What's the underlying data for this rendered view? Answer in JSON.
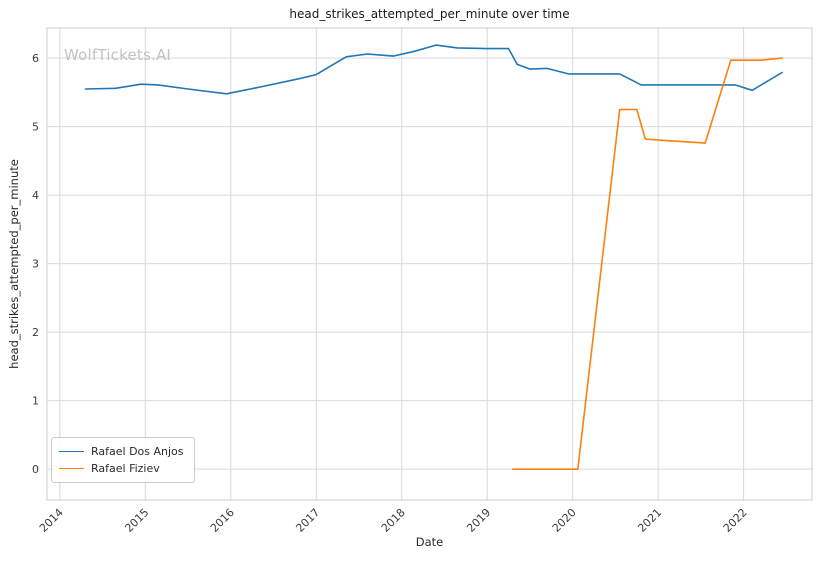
{
  "watermark": "WolfTickets.AI",
  "chart_data": {
    "type": "line",
    "title": "head_strikes_attempted_per_minute over time",
    "xlabel": "Date",
    "ylabel": "head_strikes_attempted_per_minute",
    "x_ticks": [
      2014,
      2015,
      2016,
      2017,
      2018,
      2019,
      2020,
      2021,
      2022
    ],
    "y_ticks": [
      0,
      1,
      2,
      3,
      4,
      5,
      6
    ],
    "xlim": [
      2013.85,
      2022.8
    ],
    "ylim": [
      -0.45,
      6.44
    ],
    "grid": true,
    "grid_color": "#d9d9d9",
    "spine_color": "#cccccc",
    "tick_label_color": "#3b3b3b",
    "legend_position": "lower left",
    "series": [
      {
        "name": "Rafael Dos Anjos",
        "color": "#1f77b4",
        "points": [
          [
            2014.3,
            5.55
          ],
          [
            2014.65,
            5.56
          ],
          [
            2014.95,
            5.62
          ],
          [
            2015.15,
            5.61
          ],
          [
            2015.5,
            5.55
          ],
          [
            2015.95,
            5.48
          ],
          [
            2016.35,
            5.58
          ],
          [
            2016.8,
            5.7
          ],
          [
            2017.0,
            5.76
          ],
          [
            2017.35,
            6.02
          ],
          [
            2017.6,
            6.06
          ],
          [
            2017.9,
            6.03
          ],
          [
            2018.15,
            6.1
          ],
          [
            2018.4,
            6.19
          ],
          [
            2018.65,
            6.15
          ],
          [
            2019.0,
            6.14
          ],
          [
            2019.25,
            6.14
          ],
          [
            2019.35,
            5.91
          ],
          [
            2019.5,
            5.84
          ],
          [
            2019.7,
            5.85
          ],
          [
            2019.95,
            5.77
          ],
          [
            2020.3,
            5.77
          ],
          [
            2020.55,
            5.77
          ],
          [
            2020.8,
            5.61
          ],
          [
            2021.0,
            5.61
          ],
          [
            2021.3,
            5.61
          ],
          [
            2021.6,
            5.61
          ],
          [
            2021.9,
            5.61
          ],
          [
            2022.1,
            5.53
          ],
          [
            2022.45,
            5.79
          ]
        ]
      },
      {
        "name": "Rafael Fiziev",
        "color": "#ff7f0e",
        "points": [
          [
            2019.3,
            0.0
          ],
          [
            2019.6,
            0.0
          ],
          [
            2019.9,
            0.0
          ],
          [
            2020.06,
            0.0
          ],
          [
            2020.55,
            5.25
          ],
          [
            2020.75,
            5.25
          ],
          [
            2020.85,
            4.82
          ],
          [
            2021.05,
            4.8
          ],
          [
            2021.3,
            4.78
          ],
          [
            2021.55,
            4.76
          ],
          [
            2021.85,
            5.97
          ],
          [
            2022.1,
            5.97
          ],
          [
            2022.2,
            5.97
          ],
          [
            2022.45,
            6.0
          ]
        ]
      }
    ]
  }
}
